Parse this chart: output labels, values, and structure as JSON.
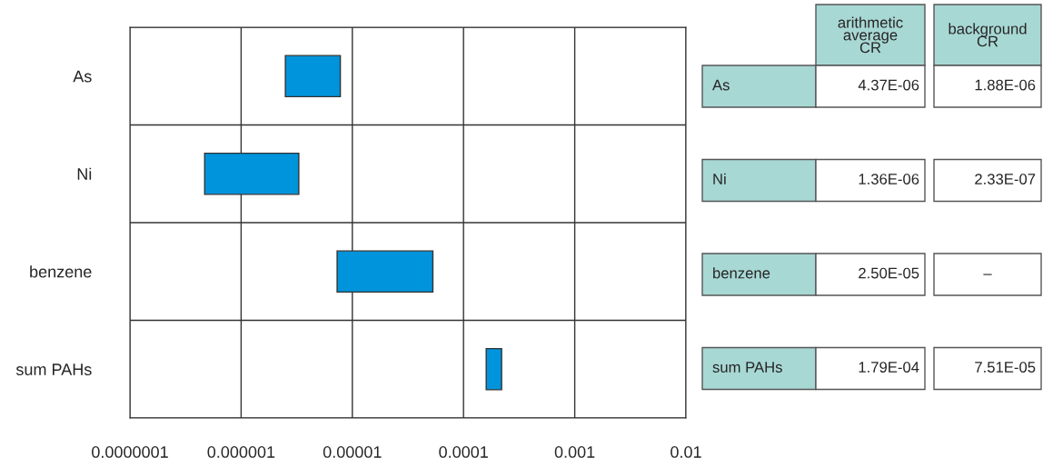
{
  "chart_data": [
    {
      "type": "bar",
      "orientation": "horizontal",
      "log": "x",
      "grid": true,
      "categories": [
        "As",
        "Ni",
        "benzene",
        "sum PAHs"
      ],
      "base": [
        2.5e-06,
        4.7e-07,
        7.3e-06,
        0.00016
      ],
      "values": [
        5.3e-06,
        2.83e-06,
        4.57e-05,
        6e-05
      ],
      "color": "#0094dc",
      "xlim": [
        1e-07,
        0.01
      ],
      "xticks": [
        {
          "value": 1e-07,
          "label": "0.0000001"
        },
        {
          "value": 1e-06,
          "label": "0.000001"
        },
        {
          "value": 1e-05,
          "label": "0.00001"
        },
        {
          "value": 0.0001,
          "label": "0.0001"
        },
        0.001,
        0.01
      ]
    },
    {
      "type": "other",
      "categories": [
        "arithmetic\naverage\nCR",
        "background\nCR"
      ],
      "y_categories": [
        "As",
        "Ni",
        "benzene",
        "sum PAHs"
      ],
      "cell_labels": [
        [
          "4.37E-06",
          "1.88E-06"
        ],
        [
          "1.36E-06",
          "2.33E-07"
        ],
        [
          "2.50E-05",
          "–"
        ],
        [
          "1.79E-04",
          "7.51E-05"
        ]
      ],
      "color": "#a8d8d4"
    }
  ]
}
